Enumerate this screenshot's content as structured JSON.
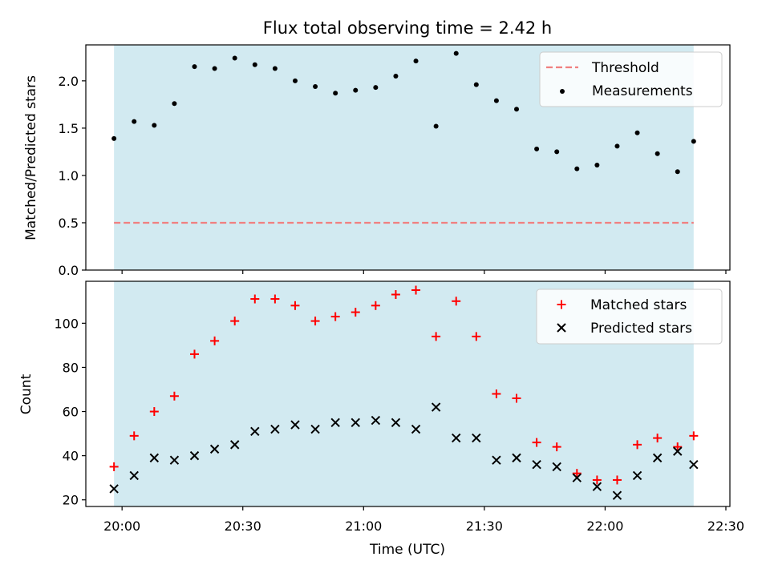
{
  "chart_data": {
    "type": "scatter",
    "title": "Flux total observing time = 2.42 h",
    "xlabel": "Time (UTC)",
    "x_tick_labels": [
      "20:00",
      "20:30",
      "21:00",
      "21:30",
      "22:00",
      "22:30"
    ],
    "x_tick_minutes": [
      1200,
      1230,
      1260,
      1290,
      1320,
      1350
    ],
    "x_range_minutes": [
      1191,
      1351
    ],
    "observing_window_minutes": [
      1198,
      1342
    ],
    "time_minutes": [
      1198,
      1203,
      1208,
      1213,
      1218,
      1223,
      1228,
      1233,
      1238,
      1243,
      1248,
      1253,
      1258,
      1263,
      1268,
      1273,
      1278,
      1283,
      1288,
      1293,
      1298,
      1303,
      1308,
      1313,
      1318,
      1323,
      1328,
      1333,
      1338,
      1342
    ],
    "window_color": "#add8e6",
    "top_panel": {
      "ylabel": "Matched/Predicted stars",
      "ylim": [
        0,
        2.38
      ],
      "y_ticks": [
        "0.0",
        "0.5",
        "1.0",
        "1.5",
        "2.0"
      ],
      "legend": [
        "Threshold",
        "Measurements"
      ],
      "legend_position": "top-right",
      "threshold": 0.5,
      "threshold_color": "#f08080",
      "measurements": [
        1.39,
        1.57,
        1.53,
        1.76,
        2.15,
        2.13,
        2.24,
        2.17,
        2.13,
        2.0,
        1.94,
        1.87,
        1.9,
        1.93,
        2.05,
        2.21,
        1.52,
        2.29,
        1.96,
        1.79,
        1.7,
        1.28,
        1.25,
        1.07,
        1.11,
        1.31,
        1.45,
        1.23,
        1.04,
        1.36
      ]
    },
    "bottom_panel": {
      "ylabel": "Count",
      "ylim": [
        17,
        119
      ],
      "y_ticks": [
        "20",
        "40",
        "60",
        "80",
        "100"
      ],
      "legend": [
        "Matched stars",
        "Predicted stars"
      ],
      "legend_position": "top-right",
      "matched_color": "#ff0000",
      "predicted_color": "#000000",
      "matched": [
        35,
        49,
        60,
        67,
        86,
        92,
        101,
        111,
        111,
        108,
        101,
        103,
        105,
        108,
        113,
        115,
        94,
        110,
        94,
        68,
        66,
        46,
        44,
        32,
        29,
        29,
        45,
        48,
        44,
        49
      ],
      "predicted": [
        25,
        31,
        39,
        38,
        40,
        43,
        45,
        51,
        52,
        54,
        52,
        55,
        55,
        56,
        55,
        52,
        62,
        48,
        48,
        38,
        39,
        36,
        35,
        30,
        26,
        22,
        31,
        39,
        42,
        36
      ]
    }
  }
}
